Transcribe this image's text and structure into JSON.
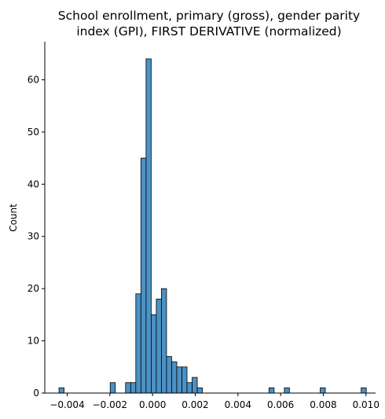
{
  "chart_data": {
    "type": "bar",
    "title_lines": [
      "School enrollment, primary (gross), gender parity",
      "index (GPI), FIRST DERIVATIVE (normalized)"
    ],
    "xlabel": "",
    "ylabel": "Count",
    "xlim": [
      -0.00505,
      0.01045
    ],
    "ylim": [
      0,
      67.3
    ],
    "x_ticks": [
      {
        "value": -0.004,
        "label": "−0.004"
      },
      {
        "value": -0.002,
        "label": "−0.002"
      },
      {
        "value": 0.0,
        "label": "0.000"
      },
      {
        "value": 0.002,
        "label": "0.002"
      },
      {
        "value": 0.004,
        "label": "0.004"
      },
      {
        "value": 0.006,
        "label": "0.006"
      },
      {
        "value": 0.008,
        "label": "0.008"
      },
      {
        "value": 0.01,
        "label": "0.010"
      }
    ],
    "y_ticks": [
      {
        "value": 0,
        "label": "0"
      },
      {
        "value": 10,
        "label": "10"
      },
      {
        "value": 20,
        "label": "20"
      },
      {
        "value": 30,
        "label": "30"
      },
      {
        "value": 40,
        "label": "40"
      },
      {
        "value": 50,
        "label": "50"
      },
      {
        "value": 60,
        "label": "60"
      }
    ],
    "bar_color": "#4c91c4",
    "bar_edge_color": "#000000",
    "grid": false,
    "bins": [
      {
        "x0": -0.004385,
        "x1": -0.004145,
        "count": 1
      },
      {
        "x0": -0.001985,
        "x1": -0.001745,
        "count": 2
      },
      {
        "x0": -0.001265,
        "x1": -0.001025,
        "count": 2
      },
      {
        "x0": -0.001025,
        "x1": -0.000785,
        "count": 2
      },
      {
        "x0": -0.000785,
        "x1": -0.000545,
        "count": 19
      },
      {
        "x0": -0.000545,
        "x1": -0.000305,
        "count": 45
      },
      {
        "x0": -0.000305,
        "x1": -6.5e-05,
        "count": 64
      },
      {
        "x0": -6.5e-05,
        "x1": 0.000175,
        "count": 15
      },
      {
        "x0": 0.000175,
        "x1": 0.000415,
        "count": 18
      },
      {
        "x0": 0.000415,
        "x1": 0.000655,
        "count": 20
      },
      {
        "x0": 0.000655,
        "x1": 0.000895,
        "count": 7
      },
      {
        "x0": 0.000895,
        "x1": 0.001135,
        "count": 6
      },
      {
        "x0": 0.001135,
        "x1": 0.001375,
        "count": 5
      },
      {
        "x0": 0.001375,
        "x1": 0.001615,
        "count": 5
      },
      {
        "x0": 0.001615,
        "x1": 0.001855,
        "count": 2
      },
      {
        "x0": 0.001855,
        "x1": 0.002095,
        "count": 3
      },
      {
        "x0": 0.002095,
        "x1": 0.002335,
        "count": 1
      },
      {
        "x0": 0.005455,
        "x1": 0.005695,
        "count": 1
      },
      {
        "x0": 0.006175,
        "x1": 0.006415,
        "count": 1
      },
      {
        "x0": 0.007855,
        "x1": 0.008095,
        "count": 1
      },
      {
        "x0": 0.009775,
        "x1": 0.010015,
        "count": 1
      }
    ]
  }
}
